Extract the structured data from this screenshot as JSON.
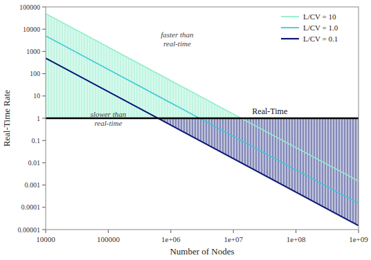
{
  "chart_data": {
    "type": "line",
    "xlabel": "Number of Nodes",
    "ylabel": "Real-Time Rate",
    "log": true,
    "grid": false,
    "legend": "upper right",
    "x": [
      10000,
      1000000000
    ],
    "series": [
      {
        "name": "L/CV = 10",
        "color": "#90eecc",
        "values": [
          50000,
          0.0015
        ]
      },
      {
        "name": "L/CV = 1.0",
        "color": "#40c8d8",
        "values": [
          5000,
          0.00015
        ]
      },
      {
        "name": "L/CV = 0.1",
        "color": "#0a1575",
        "values": [
          500,
          1.5e-05
        ]
      }
    ],
    "xlim": [
      10000,
      1000000000
    ],
    "ylim": [
      1e-05,
      100000
    ],
    "xticks": [
      10000,
      100000,
      {
        "value": 1000000,
        "label": "1e+06"
      },
      {
        "value": 10000000,
        "label": "1e+07"
      },
      {
        "value": 100000000,
        "label": "1e+08"
      },
      {
        "value": 1000000000,
        "label": "1e+09"
      }
    ],
    "yticks": [
      1e-05,
      0.0001,
      0.001,
      0.01,
      0.1,
      1,
      10,
      100,
      1000,
      10000,
      100000
    ],
    "annotations": [
      {
        "text": "Real-Time",
        "y": 1
      },
      {
        "text": "faster than\nreal-time"
      },
      {
        "text": "slower than\nreal-time"
      }
    ]
  }
}
